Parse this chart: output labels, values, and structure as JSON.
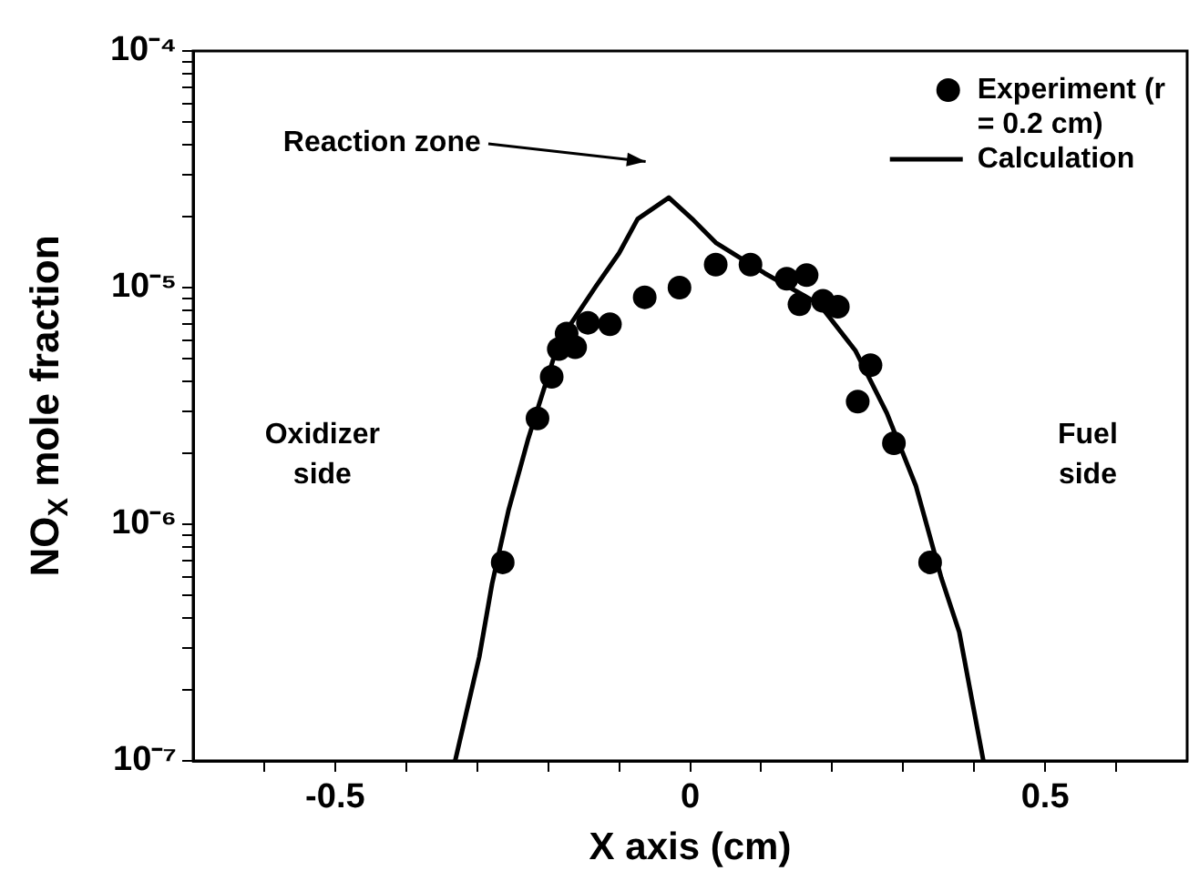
{
  "chart_data": {
    "type": "scatter",
    "xlabel": "X axis (cm)",
    "ylabel": "NO$_{X}$ mole fraction",
    "log": "y",
    "xlim": [
      -0.7,
      0.7
    ],
    "ylim": [
      1e-07,
      0.0001
    ],
    "xticks": [
      {
        "value": -0.6,
        "label": null
      },
      -0.5,
      {
        "value": -0.4,
        "label": null
      },
      {
        "value": -0.3,
        "label": null
      },
      {
        "value": -0.2,
        "label": null
      },
      {
        "value": -0.1,
        "label": null
      },
      0,
      {
        "value": 0.1,
        "label": null
      },
      {
        "value": 0.2,
        "label": null
      },
      {
        "value": 0.3,
        "label": null
      },
      {
        "value": 0.4,
        "label": null
      },
      0.5,
      {
        "value": 0.6,
        "label": null
      }
    ],
    "yticks": [
      {
        "value": 1e-07,
        "label": "10⁻⁷"
      },
      {
        "value": 2e-07,
        "label": null
      },
      {
        "value": 3e-07,
        "label": null
      },
      {
        "value": 4e-07,
        "label": null
      },
      {
        "value": 5e-07,
        "label": null
      },
      {
        "value": 6e-07,
        "label": null
      },
      {
        "value": 7e-07,
        "label": null
      },
      {
        "value": 8e-07,
        "label": null
      },
      {
        "value": 9e-07,
        "label": null
      },
      {
        "value": 1e-06,
        "label": "10⁻⁶"
      },
      {
        "value": 2e-06,
        "label": null
      },
      {
        "value": 3e-06,
        "label": null
      },
      {
        "value": 4e-06,
        "label": null
      },
      {
        "value": 5e-06,
        "label": null
      },
      {
        "value": 6e-06,
        "label": null
      },
      {
        "value": 7e-06,
        "label": null
      },
      {
        "value": 8e-06,
        "label": null
      },
      {
        "value": 9e-06,
        "label": null
      },
      {
        "value": 1e-05,
        "label": "10⁻⁵"
      },
      {
        "value": 2e-05,
        "label": null
      },
      {
        "value": 3e-05,
        "label": null
      },
      {
        "value": 4e-05,
        "label": null
      },
      {
        "value": 5e-05,
        "label": null
      },
      {
        "value": 6e-05,
        "label": null
      },
      {
        "value": 7e-05,
        "label": null
      },
      {
        "value": 8e-05,
        "label": null
      },
      {
        "value": 9e-05,
        "label": null
      },
      {
        "value": 0.0001,
        "label": "10⁻⁴"
      }
    ],
    "grid": false,
    "legend": "top right",
    "series": [
      {
        "name": "Experiment (r = 0.2 cm)",
        "type": "scatter",
        "marker": "circle",
        "color": "#000000",
        "x": [
          -0.264,
          -0.215,
          -0.195,
          -0.185,
          -0.162,
          -0.174,
          -0.144,
          -0.113,
          -0.064,
          -0.015,
          0.036,
          0.085,
          0.136,
          0.164,
          0.154,
          0.187,
          0.208,
          0.254,
          0.236,
          0.287,
          0.338
        ],
        "values": [
          6.9e-07,
          2.8e-06,
          4.2e-06,
          5.5e-06,
          5.6e-06,
          6.4e-06,
          7.1e-06,
          7e-06,
          9.1e-06,
          1e-05,
          1.25e-05,
          1.25e-05,
          1.09e-05,
          1.13e-05,
          8.5e-06,
          8.8e-06,
          8.3e-06,
          4.7e-06,
          3.3e-06,
          2.2e-06,
          6.9e-07
        ]
      },
      {
        "name": "Calculation",
        "type": "line",
        "marker": "none",
        "line_style": "solid",
        "color": "#000000",
        "x": [
          -0.331,
          -0.297,
          -0.279,
          -0.256,
          -0.228,
          -0.185,
          -0.133,
          -0.1,
          -0.074,
          -0.03,
          0.003,
          0.036,
          0.105,
          0.182,
          0.233,
          0.277,
          0.318,
          0.354,
          0.379,
          0.413
        ],
        "values": [
          1e-07,
          2.75e-07,
          5.6e-07,
          1.14e-06,
          2.3e-06,
          5.9e-06,
          1.01e-05,
          1.4e-05,
          1.95e-05,
          2.4e-05,
          1.95e-05,
          1.55e-05,
          1.15e-05,
          8.5e-06,
          5.4e-06,
          2.95e-06,
          1.45e-06,
          5.9e-07,
          3.5e-07,
          1e-07
        ]
      }
    ],
    "annotations": [
      "Reaction zone",
      "Oxidizer side",
      "Fuel side"
    ]
  }
}
